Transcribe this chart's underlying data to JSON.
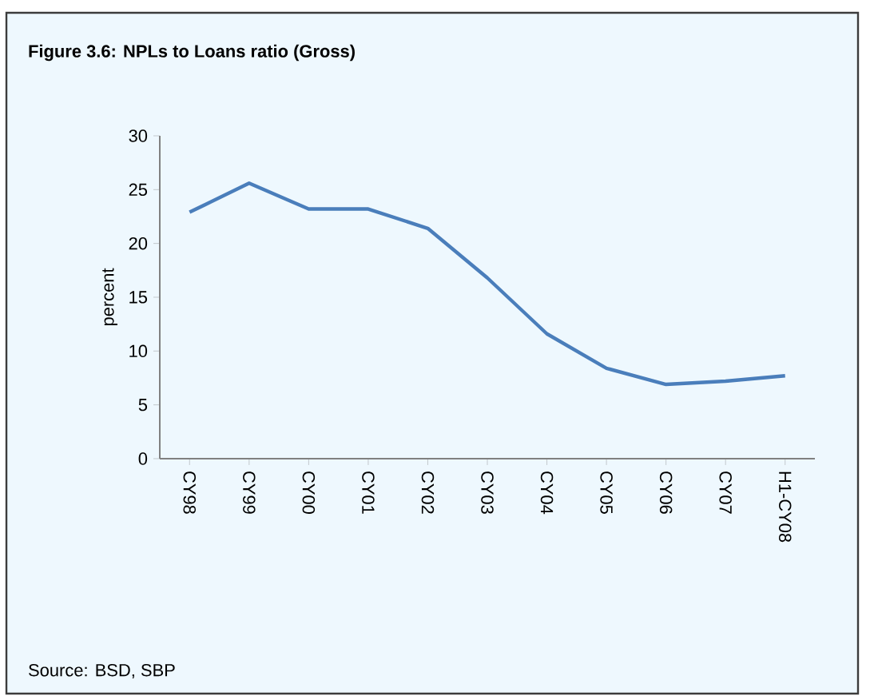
{
  "chart_data": {
    "type": "line",
    "title": "Figure 3.6: NPLs to Loans ratio (Gross)",
    "ylabel": "percent",
    "categories": [
      "CY98",
      "CY99",
      "CY00",
      "CY01",
      "CY02",
      "CY03",
      "CY04",
      "CY05",
      "CY06",
      "CY07",
      "H1-CY08"
    ],
    "series": [
      {
        "color": "#4a7ebb",
        "values": [
          22.9,
          25.6,
          23.2,
          23.2,
          21.4,
          16.8,
          11.6,
          8.4,
          6.9,
          7.2,
          7.7
        ]
      }
    ],
    "ylim": [
      0,
      30
    ],
    "yticks": [
      0,
      5,
      10,
      15,
      20,
      25,
      30
    ],
    "grid": false,
    "marker": "none",
    "line_style": "solid",
    "annotations": [
      "Source: BSD, SBP"
    ]
  }
}
